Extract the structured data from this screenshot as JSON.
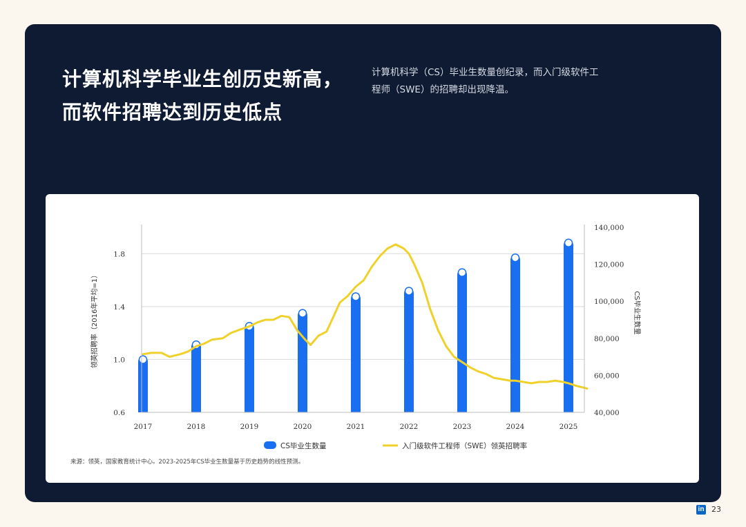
{
  "page": {
    "title_line1": "计算机科学毕业生创历史新高，",
    "title_line2": "而软件招聘达到历史低点",
    "subtitle_line1": "计算机科学（CS）毕业生数量创纪录，而入门级软件工",
    "subtitle_line2": "程师（SWE）的招聘却出现降温。",
    "source": "来源：领英，国家教育统计中心。2023-2025年CS毕业生数量基于历史趋势的线性预测。",
    "page_number": "23",
    "logo_text": "in"
  },
  "colors": {
    "panel": "#0f1b33",
    "bar": "#1a6ff0",
    "line": "#f0d12a",
    "grid": "#d9d9d9"
  },
  "chart_data": {
    "type": "bar",
    "title": "",
    "xlabel": "",
    "ylabel": "领英招聘率（2016年平均=1）",
    "y2label": "CS毕业生数量",
    "categories": [
      "2017",
      "2018",
      "2019",
      "2020",
      "2021",
      "2022",
      "2023",
      "2024",
      "2025"
    ],
    "ylim": [
      0.6,
      2.0
    ],
    "y_ticks": [
      "0.6",
      "1.0",
      "1.4",
      "1.8"
    ],
    "y_tick_values": [
      0.6,
      1.0,
      1.4,
      1.8
    ],
    "y2lim": [
      40000,
      140000
    ],
    "y2_ticks": [
      "40,000",
      "60,000",
      "80,000",
      "100,000",
      "120,000",
      "140,000"
    ],
    "y2_tick_values": [
      40000,
      60000,
      80000,
      100000,
      120000,
      140000
    ],
    "grid": true,
    "legend_position": "bottom",
    "series": [
      {
        "name": "CS毕业生数量",
        "type": "bar",
        "axis": "right",
        "values": [
          70000,
          78000,
          88000,
          95000,
          104000,
          107000,
          117000,
          125000,
          133000
        ]
      },
      {
        "name": "入门级软件工程师（SWE）领英招聘率",
        "type": "line",
        "axis": "left",
        "x": [
          2017.0,
          2017.15,
          2017.35,
          2017.5,
          2017.7,
          2017.85,
          2018.0,
          2018.15,
          2018.3,
          2018.5,
          2018.65,
          2018.85,
          2019.0,
          2019.15,
          2019.3,
          2019.45,
          2019.6,
          2019.75,
          2019.9,
          2020.05,
          2020.15,
          2020.3,
          2020.45,
          2020.6,
          2020.7,
          2020.85,
          2021.0,
          2021.15,
          2021.3,
          2021.45,
          2021.6,
          2021.75,
          2021.9,
          2022.0,
          2022.1,
          2022.25,
          2022.4,
          2022.55,
          2022.7,
          2022.85,
          2023.0,
          2023.15,
          2023.3,
          2023.45,
          2023.6,
          2023.75,
          2023.9,
          2024.0,
          2024.15,
          2024.3,
          2024.45,
          2024.6,
          2024.75,
          2024.9,
          2025.0,
          2025.15,
          2025.35
        ],
        "values": [
          1.04,
          1.05,
          1.05,
          1.02,
          1.04,
          1.06,
          1.1,
          1.12,
          1.15,
          1.16,
          1.2,
          1.23,
          1.25,
          1.28,
          1.3,
          1.3,
          1.33,
          1.32,
          1.22,
          1.15,
          1.11,
          1.18,
          1.21,
          1.34,
          1.43,
          1.48,
          1.55,
          1.6,
          1.7,
          1.78,
          1.84,
          1.87,
          1.84,
          1.8,
          1.72,
          1.58,
          1.38,
          1.22,
          1.1,
          1.02,
          0.98,
          0.94,
          0.91,
          0.89,
          0.86,
          0.85,
          0.84,
          0.84,
          0.83,
          0.82,
          0.83,
          0.83,
          0.84,
          0.83,
          0.82,
          0.8,
          0.78
        ]
      }
    ]
  }
}
